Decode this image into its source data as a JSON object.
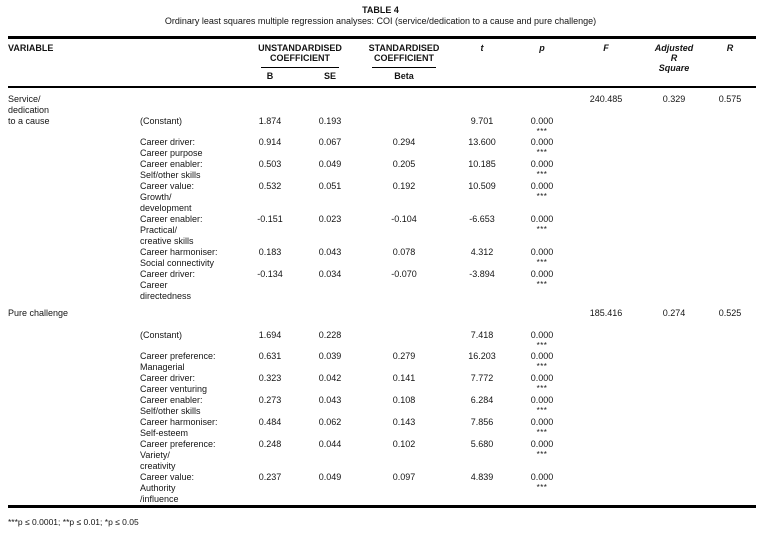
{
  "page": {
    "title": "TABLE 4",
    "subtitle": "Ordinary least squares multiple regression analyses: COI (service/dedication to a cause and pure challenge)",
    "footnote": "***p ≤ 0.0001; **p ≤ 0.01; *p ≤ 0.05"
  },
  "table": {
    "headers": {
      "variable": "VARIABLE",
      "unstandardised": "UNSTANDARDISED\nCOEFFICIENT",
      "standardised": "STANDARDISED\nCOEFFICIENT",
      "b": "B",
      "se": "SE",
      "beta": "Beta",
      "t": "t",
      "p": "p",
      "f": "F",
      "adj_r_square": "Adjusted\nR\nSquare",
      "r": "R"
    },
    "groups": [
      {
        "variable": "Service/\ndedication\nto a cause",
        "f": "240.485",
        "adj_r_square": "0.329",
        "r": "0.575",
        "rows": [
          {
            "predictor": "(Constant)",
            "b": "1.874",
            "se": "0.193",
            "beta": "",
            "t": "9.701",
            "p": "0.000",
            "sig": "***"
          },
          {
            "predictor": "Career driver:\nCareer purpose",
            "b": "0.914",
            "se": "0.067",
            "beta": "0.294",
            "t": "13.600",
            "p": "0.000",
            "sig": "***"
          },
          {
            "predictor": "Career enabler:\nSelf/other skills",
            "b": "0.503",
            "se": "0.049",
            "beta": "0.205",
            "t": "10.185",
            "p": "0.000",
            "sig": "***"
          },
          {
            "predictor": "Career value:\nGrowth/\ndevelopment",
            "b": "0.532",
            "se": "0.051",
            "beta": "0.192",
            "t": "10.509",
            "p": "0.000",
            "sig": "***"
          },
          {
            "predictor": "Career enabler:\nPractical/\ncreative skills",
            "b": "-0.151",
            "se": "0.023",
            "beta": "-0.104",
            "t": "-6.653",
            "p": "0.000",
            "sig": "***"
          },
          {
            "predictor": "Career harmoniser:\nSocial connectivity",
            "b": "0.183",
            "se": "0.043",
            "beta": "0.078",
            "t": "4.312",
            "p": "0.000",
            "sig": "***"
          },
          {
            "predictor": "Career driver:\nCareer\ndirectedness",
            "b": "-0.134",
            "se": "0.034",
            "beta": "-0.070",
            "t": "-3.894",
            "p": "0.000",
            "sig": "***"
          }
        ]
      },
      {
        "variable": "Pure challenge",
        "f": "185.416",
        "adj_r_square": "0.274",
        "r": "0.525",
        "rows": [
          {
            "predictor": "(Constant)",
            "b": "1.694",
            "se": "0.228",
            "beta": "",
            "t": "7.418",
            "p": "0.000",
            "sig": "***"
          },
          {
            "predictor": "Career preference:\nManagerial",
            "b": "0.631",
            "se": "0.039",
            "beta": "0.279",
            "t": "16.203",
            "p": "0.000",
            "sig": "***"
          },
          {
            "predictor": "Career driver:\nCareer venturing",
            "b": "0.323",
            "se": "0.042",
            "beta": "0.141",
            "t": "7.772",
            "p": "0.000",
            "sig": "***"
          },
          {
            "predictor": "Career enabler:\nSelf/other skills",
            "b": "0.273",
            "se": "0.043",
            "beta": "0.108",
            "t": "6.284",
            "p": "0.000",
            "sig": "***"
          },
          {
            "predictor": "Career harmoniser:\nSelf-esteem",
            "b": "0.484",
            "se": "0.062",
            "beta": "0.143",
            "t": "7.856",
            "p": "0.000",
            "sig": "***"
          },
          {
            "predictor": "Career preference:\nVariety/\ncreativity",
            "b": "0.248",
            "se": "0.044",
            "beta": "0.102",
            "t": "5.680",
            "p": "0.000",
            "sig": "***"
          },
          {
            "predictor": "Career value:\nAuthority\n/influence",
            "b": "0.237",
            "se": "0.049",
            "beta": "0.097",
            "t": "4.839",
            "p": "0.000",
            "sig": "***"
          }
        ]
      }
    ]
  }
}
